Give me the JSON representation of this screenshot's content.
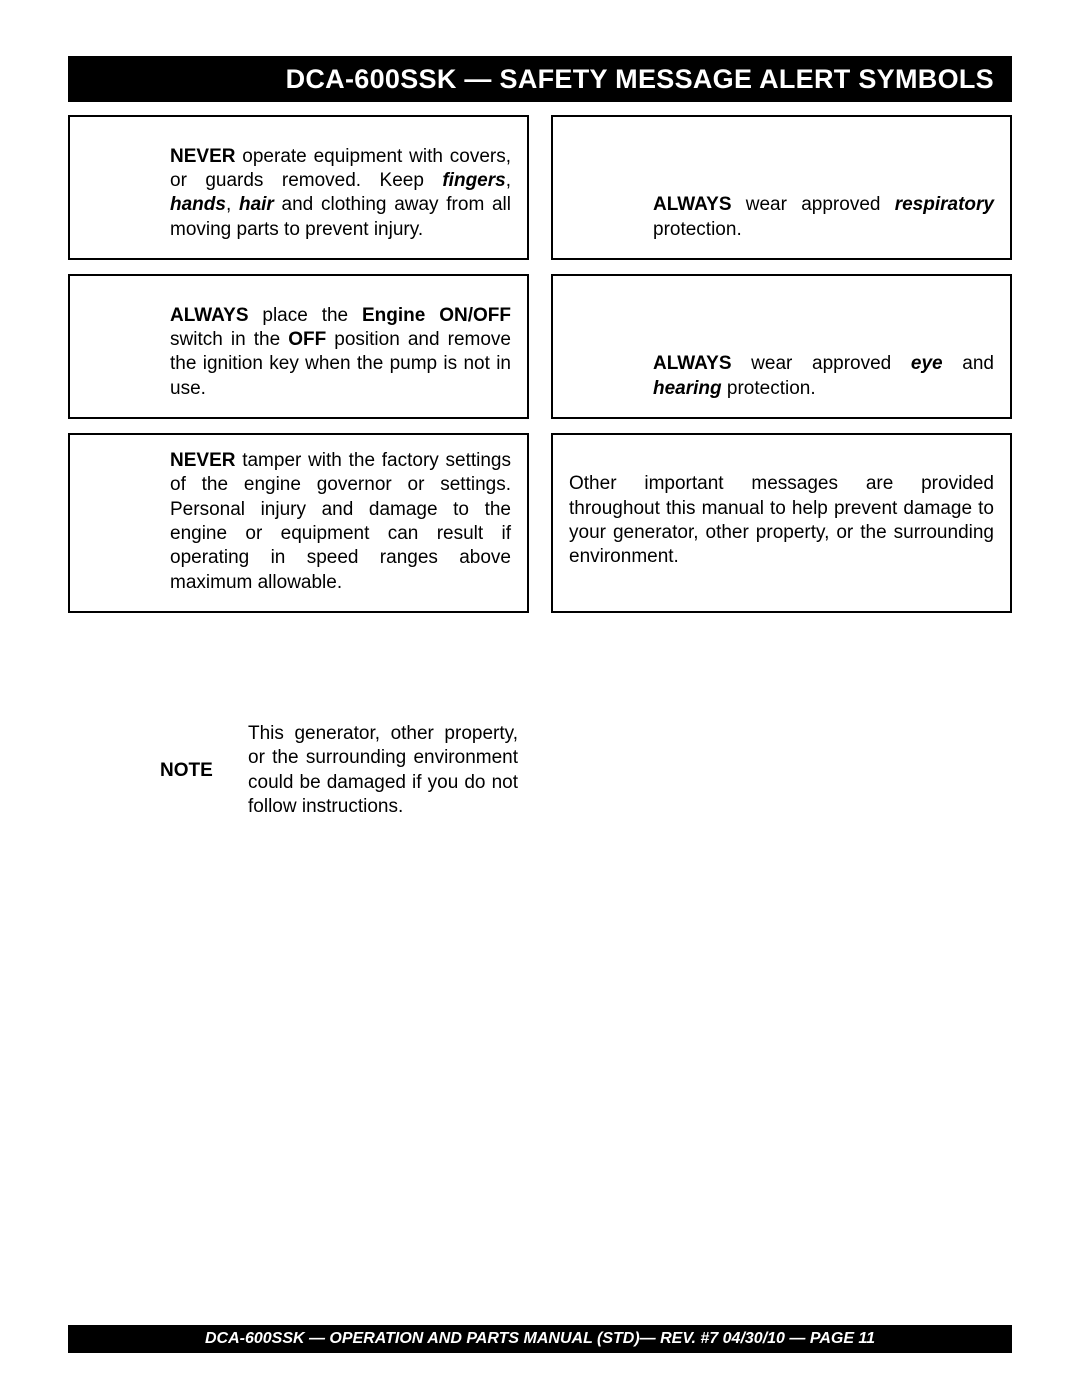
{
  "header": {
    "title": "DCA-600SSK — SAFETY MESSAGE ALERT SYMBOLS"
  },
  "left_boxes": {
    "box1": {
      "pre1": "NEVER",
      "t1": " operate equipment with covers, or guards removed. Keep ",
      "bi1": "fingers",
      "t2": ", ",
      "bi2": "hands",
      "t3": ", ",
      "bi3": "hair",
      "t4": " and clothing away from all moving parts to prevent injury."
    },
    "box2": {
      "pre1": "ALWAYS",
      "t1": " place the ",
      "b1": "Engine ON/OFF",
      "t2": " switch in the ",
      "b2": "OFF",
      "t3": " position and remove the ignition key when the pump is not in use."
    },
    "box3": {
      "pre1": "NEVER",
      "t1": " tamper with the factory settings of the engine governor or settings. Personal injury and damage to the engine or equipment can result if operating in speed ranges above maximum allowable."
    }
  },
  "right_boxes": {
    "box4": {
      "pre1": "ALWAYS",
      "t1": " wear approved ",
      "bi1": "respiratory",
      "t2": " protection."
    },
    "box5": {
      "pre1": "ALWAYS",
      "t1": " wear approved ",
      "bi1": "eye",
      "t2": " and ",
      "bi2": "hearing",
      "t3": " protection."
    },
    "box6": {
      "t1": "Other important messages are provided throughout this manual to help prevent damage to your generator, other property, or the surrounding environment."
    }
  },
  "note": {
    "label": "NOTE",
    "text": "This generator, other property, or the surrounding environment could be damaged if you do not follow instructions."
  },
  "footer": {
    "text": "DCA-600SSK — OPERATION AND PARTS MANUAL (STD)— REV. #7  04/30/10 — PAGE 11"
  }
}
